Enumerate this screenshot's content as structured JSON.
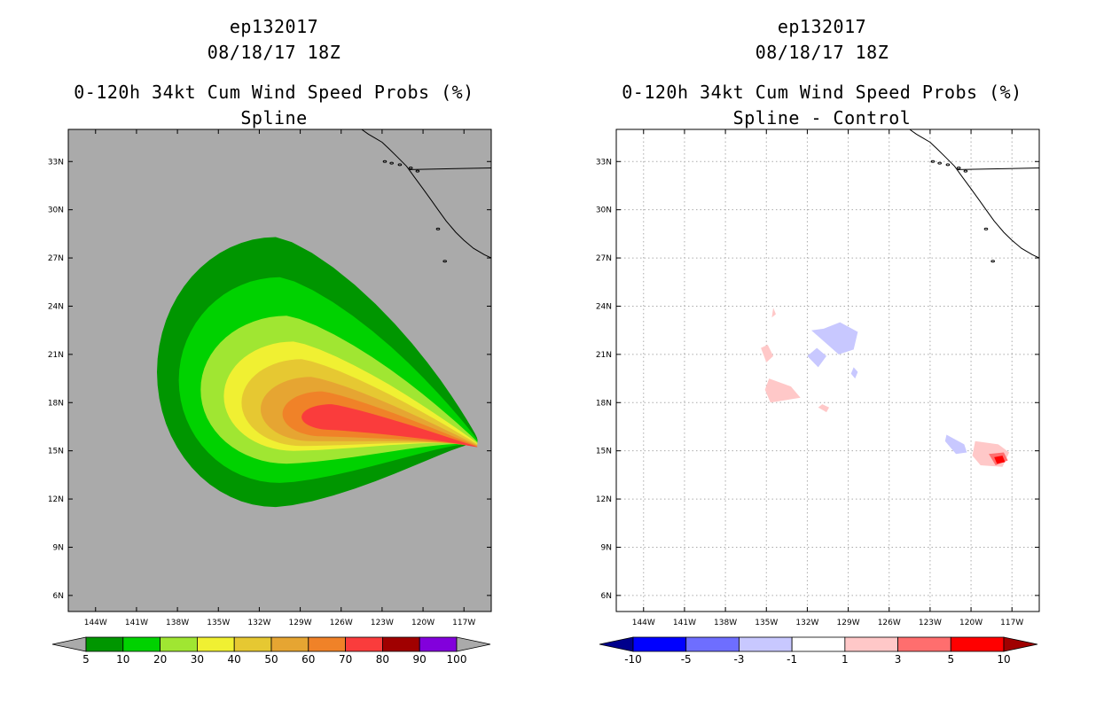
{
  "chart_data": [
    {
      "type": "heatmap",
      "storm_id": "ep132017",
      "datetime": "08/18/17 18Z",
      "title": "0-120h 34kt Cum Wind Speed Probs (%)",
      "subtitle": "Spline",
      "units": "%",
      "x_ticks": [
        "144W",
        "141W",
        "138W",
        "135W",
        "132W",
        "129W",
        "126W",
        "123W",
        "120W",
        "117W"
      ],
      "y_ticks": [
        "33N",
        "30N",
        "27N",
        "24N",
        "21N",
        "18N",
        "15N",
        "12N",
        "9N",
        "6N"
      ],
      "x_range_deg": [
        -146,
        -115
      ],
      "y_range_deg": [
        5,
        35
      ],
      "background_color": "#aaaaaa",
      "colorbar": {
        "labels": [
          "5",
          "10",
          "20",
          "30",
          "40",
          "50",
          "60",
          "70",
          "80",
          "90",
          "100"
        ],
        "colors": [
          "#009600",
          "#00d200",
          "#a0e632",
          "#f0f032",
          "#e6c832",
          "#e6a532",
          "#f08228",
          "#fa3c3c",
          "#a00000",
          "#8200dc"
        ]
      },
      "contours": [
        {
          "level": 5,
          "center": [
            -130.8,
            19.9
          ],
          "radius_deg": [
            8.7,
            8.4
          ]
        },
        {
          "level": 10,
          "center": [
            -130.5,
            19.4
          ],
          "radius_deg": [
            7.4,
            6.4
          ]
        },
        {
          "level": 20,
          "center": [
            -130.0,
            18.8
          ],
          "radius_deg": [
            6.3,
            4.6
          ]
        },
        {
          "level": 30,
          "center": [
            -129.5,
            18.4
          ],
          "radius_deg": [
            5.1,
            3.4
          ]
        },
        {
          "level": 40,
          "center": [
            -128.9,
            18.0
          ],
          "radius_deg": [
            4.4,
            2.7
          ]
        },
        {
          "level": 50,
          "center": [
            -128.2,
            17.6
          ],
          "radius_deg": [
            3.7,
            2.0
          ]
        },
        {
          "level": 60,
          "center": [
            -127.4,
            17.3
          ],
          "radius_deg": [
            2.9,
            1.4
          ]
        },
        {
          "level": 70,
          "center": [
            -126.7,
            17.1
          ],
          "radius_deg": [
            2.2,
            0.8
          ]
        }
      ],
      "tip": [
        -116.0,
        14.9
      ]
    },
    {
      "type": "heatmap",
      "storm_id": "ep132017",
      "datetime": "08/18/17 18Z",
      "title": "0-120h 34kt Cum Wind Speed Probs (%)",
      "subtitle": "Spline - Control",
      "units": "%",
      "x_ticks": [
        "144W",
        "141W",
        "138W",
        "135W",
        "132W",
        "129W",
        "126W",
        "123W",
        "120W",
        "117W"
      ],
      "y_ticks": [
        "33N",
        "30N",
        "27N",
        "24N",
        "21N",
        "18N",
        "15N",
        "12N",
        "9N",
        "6N"
      ],
      "x_range_deg": [
        -146,
        -115
      ],
      "y_range_deg": [
        5,
        35
      ],
      "background_color": "#ffffff",
      "colorbar": {
        "labels": [
          "-10",
          "-5",
          "-3",
          "-1",
          "1",
          "3",
          "5",
          "10"
        ],
        "colors": [
          "#00008c",
          "#0000ff",
          "#6e6eff",
          "#c8c8ff",
          "#ffffff",
          "#ffc8c8",
          "#ff6e6e",
          "#ff0000",
          "#a00000"
        ]
      },
      "blobs": [
        {
          "sign": "negative",
          "level": -1,
          "points": [
            [
              -131.7,
              22.5
            ],
            [
              -130.5,
              21.6
            ],
            [
              -129.7,
              21.0
            ],
            [
              -128.6,
              21.3
            ],
            [
              -128.3,
              22.4
            ],
            [
              -129.6,
              23.0
            ],
            [
              -130.8,
              22.6
            ]
          ]
        },
        {
          "sign": "negative",
          "level": -1,
          "points": [
            [
              -132.0,
              20.9
            ],
            [
              -131.2,
              20.2
            ],
            [
              -130.6,
              20.9
            ],
            [
              -131.3,
              21.4
            ]
          ]
        },
        {
          "sign": "negative",
          "level": -1,
          "points": [
            [
              -128.8,
              19.8
            ],
            [
              -128.5,
              19.5
            ],
            [
              -128.3,
              19.9
            ],
            [
              -128.6,
              20.2
            ]
          ]
        },
        {
          "sign": "negative",
          "level": -1,
          "points": [
            [
              -121.8,
              16.0
            ],
            [
              -120.5,
              15.4
            ],
            [
              -120.3,
              14.9
            ],
            [
              -121.1,
              14.8
            ],
            [
              -121.9,
              15.6
            ]
          ]
        },
        {
          "sign": "positive",
          "level": 1,
          "points": [
            [
              -135.4,
              21.4
            ],
            [
              -135.0,
              20.5
            ],
            [
              -134.5,
              20.9
            ],
            [
              -134.9,
              21.6
            ]
          ]
        },
        {
          "sign": "positive",
          "level": 1,
          "points": [
            [
              -134.8,
              19.5
            ],
            [
              -133.2,
              19.0
            ],
            [
              -132.5,
              18.3
            ],
            [
              -134.7,
              18.0
            ],
            [
              -135.1,
              18.8
            ]
          ]
        },
        {
          "sign": "positive",
          "level": 1,
          "points": [
            [
              -134.6,
              23.3
            ],
            [
              -134.3,
              23.5
            ],
            [
              -134.5,
              23.9
            ]
          ]
        },
        {
          "sign": "positive",
          "level": 1,
          "points": [
            [
              -131.2,
              17.7
            ],
            [
              -130.6,
              17.4
            ],
            [
              -130.4,
              17.7
            ],
            [
              -130.9,
              17.9
            ]
          ]
        },
        {
          "sign": "positive",
          "level": 1,
          "points": [
            [
              -119.7,
              15.6
            ],
            [
              -118.0,
              15.4
            ],
            [
              -117.2,
              14.9
            ],
            [
              -117.7,
              14.0
            ],
            [
              -119.3,
              14.1
            ],
            [
              -119.9,
              14.7
            ]
          ]
        },
        {
          "sign": "positive",
          "level": 3,
          "points": [
            [
              -118.7,
              14.8
            ],
            [
              -117.6,
              14.9
            ],
            [
              -117.3,
              14.4
            ],
            [
              -118.2,
              14.1
            ]
          ]
        },
        {
          "sign": "positive",
          "level": 5,
          "points": [
            [
              -118.3,
              14.6
            ],
            [
              -117.7,
              14.7
            ],
            [
              -117.5,
              14.3
            ],
            [
              -118.1,
              14.2
            ]
          ]
        }
      ]
    }
  ]
}
